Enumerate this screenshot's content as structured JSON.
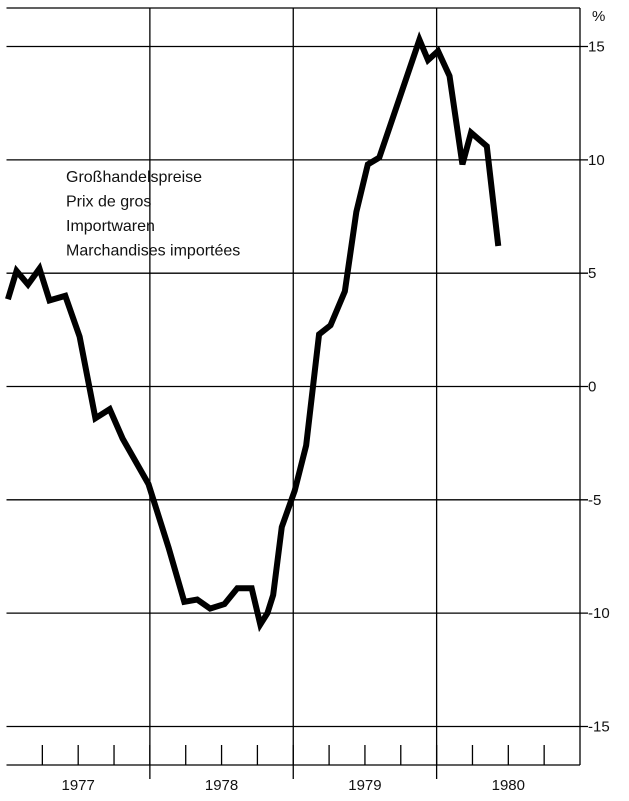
{
  "chart_data": {
    "type": "line",
    "unit_label": "%",
    "legend_lines": [
      "Großhandelspreise",
      "Prix de gros",
      "Importwaren",
      "Marchandises importées"
    ],
    "x": [
      1977.01,
      1977.07,
      1977.15,
      1977.23,
      1977.3,
      1977.41,
      1977.51,
      1977.62,
      1977.72,
      1977.81,
      1977.99,
      1978.13,
      1978.24,
      1978.33,
      1978.42,
      1978.52,
      1978.61,
      1978.71,
      1978.77,
      1978.82,
      1978.86,
      1978.92,
      1979.01,
      1979.09,
      1979.18,
      1979.26,
      1979.36,
      1979.44,
      1979.52,
      1979.6,
      1979.88,
      1979.94,
      1980.01,
      1980.09,
      1980.18,
      1980.24,
      1980.35,
      1980.43
    ],
    "series": [
      {
        "name": "Großhandelspreise Importwaren",
        "color": "#000000",
        "values": [
          3.85,
          5.1,
          4.5,
          5.2,
          3.8,
          4.0,
          2.2,
          -1.4,
          -1.0,
          -2.3,
          -4.3,
          -7.1,
          -9.5,
          -9.4,
          -9.8,
          -9.6,
          -8.9,
          -8.9,
          -10.5,
          -10.0,
          -9.2,
          -6.2,
          -4.6,
          -2.6,
          2.3,
          2.7,
          4.2,
          7.7,
          9.8,
          10.1,
          15.3,
          14.4,
          14.8,
          13.7,
          9.8,
          11.2,
          10.6,
          6.2
        ]
      }
    ],
    "xlim": [
      1977,
      1981
    ],
    "xticks": [
      {
        "value": 1977.5,
        "label": "1977"
      },
      {
        "value": 1978.5,
        "label": "1978"
      },
      {
        "value": 1979.5,
        "label": "1979"
      },
      {
        "value": 1980.5,
        "label": "1980"
      }
    ],
    "minor_xticks": [
      1977.25,
      1977.5,
      1977.75,
      1978,
      1978.25,
      1978.5,
      1978.75,
      1979,
      1979.25,
      1979.5,
      1979.75,
      1980,
      1980.25,
      1980.5,
      1980.75
    ],
    "xgrid": [
      1978,
      1979,
      1980
    ],
    "ylim": [
      -16.7,
      16.7
    ],
    "yticks": [
      -15,
      -10,
      -5,
      0,
      5,
      10,
      15
    ],
    "grid": true
  }
}
